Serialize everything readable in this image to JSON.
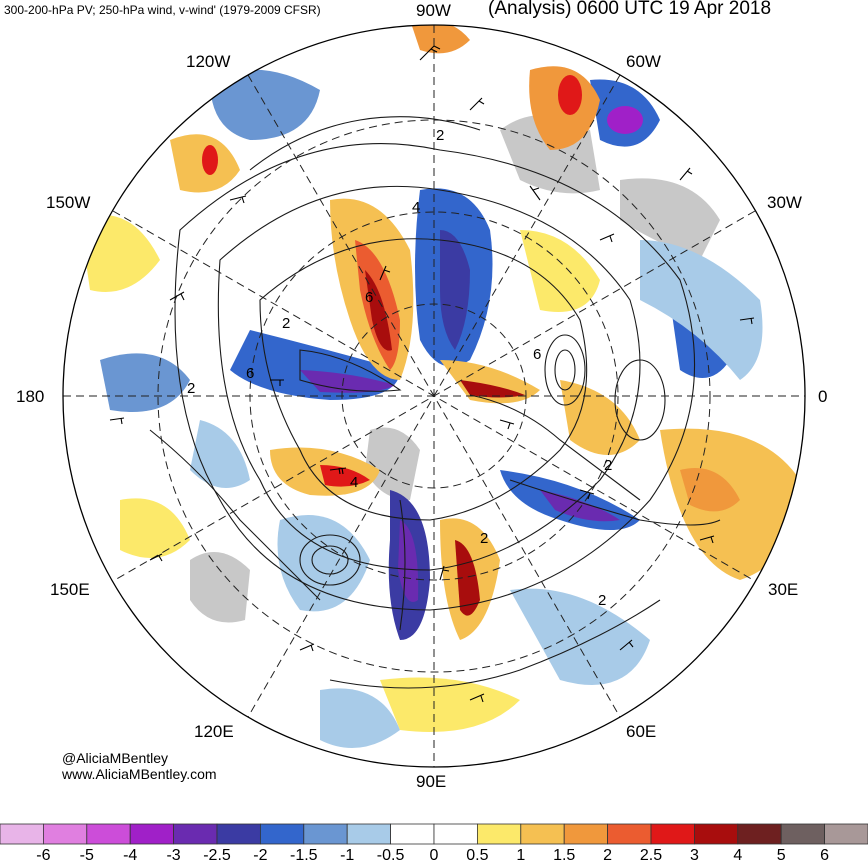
{
  "header": {
    "left": "300-200-hPa PV; 250-hPa wind, v-wind' (1979-2009 CFSR)",
    "right": "(Analysis) 0600 UTC 19 Apr 2018"
  },
  "longitude_labels": {
    "top": "90W",
    "upper_left": "120W",
    "upper_right": "60W",
    "left_upper": "150W",
    "right_upper": "30W",
    "left": "180",
    "right": "0",
    "left_lower": "150E",
    "right_lower": "30E",
    "lower_left": "120E",
    "lower_right": "60E",
    "bottom": "90E"
  },
  "contour_labels": [
    "2",
    "4",
    "6",
    "2",
    "6",
    "2",
    "4",
    "6",
    "2",
    "2",
    "2"
  ],
  "credits": {
    "handle": "@AliciaMBentley",
    "site": "www.AliciaMBentley.com"
  },
  "colorbar": {
    "ticks": [
      "-6",
      "-5",
      "-4",
      "-3",
      "-2.5",
      "-2",
      "-1.5",
      "-1",
      "-0.5",
      "0",
      "0.5",
      "1",
      "1.5",
      "2",
      "2.5",
      "3",
      "4",
      "5",
      "6"
    ],
    "colors": [
      "#e8b4e8",
      "#e07fe0",
      "#cc4dd9",
      "#a020c8",
      "#6a2bb0",
      "#3b3ba3",
      "#3366cc",
      "#6a96d2",
      "#a8cbe8",
      "#ffffff",
      "#ffffff",
      "#fce96a",
      "#f5c052",
      "#f0983c",
      "#eb5c30",
      "#e01818",
      "#a80d0d",
      "#6e2020",
      "#6e6060",
      "#a89898"
    ]
  }
}
